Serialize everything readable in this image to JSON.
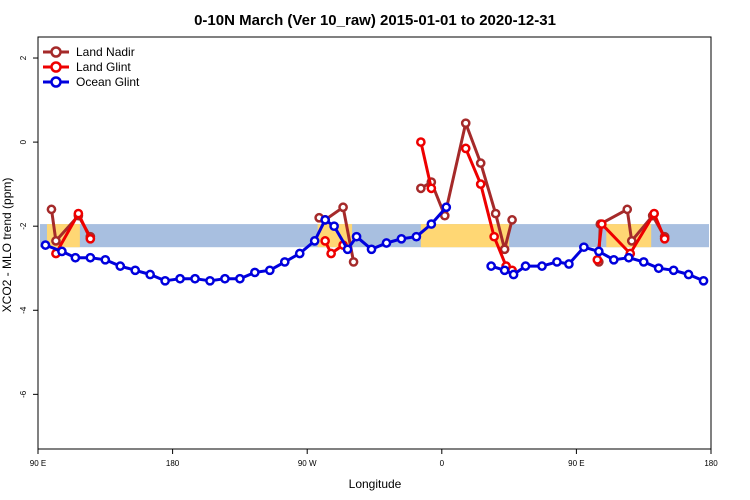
{
  "chart_data": {
    "type": "line",
    "title": "0-10N March (Ver 10_raw)   2015-01-01 to 2020-12-31",
    "xlabel": "Longitude",
    "ylabel": "XCO2 - MLO trend (ppm)",
    "xlim": [
      90,
      540
    ],
    "ylim": [
      -7.3,
      2.5
    ],
    "x_ticks": [
      {
        "value": 90,
        "label": "90 E"
      },
      {
        "value": 180,
        "label": "180"
      },
      {
        "value": 270,
        "label": "90 W"
      },
      {
        "value": 360,
        "label": "0"
      },
      {
        "value": 450,
        "label": "90 E"
      },
      {
        "value": 540,
        "label": "180"
      }
    ],
    "y_ticks": [
      {
        "value": 2,
        "label": "2"
      },
      {
        "value": 0,
        "label": "0"
      },
      {
        "value": -2,
        "label": "-2"
      },
      {
        "value": -4,
        "label": "-4"
      },
      {
        "value": -6,
        "label": "-6"
      }
    ],
    "band": {
      "y_min": -2.5,
      "y_max": -1.95,
      "color": "#a8bfe0"
    },
    "land_shading": {
      "color": "#ffd774",
      "regions": [
        {
          "x_from": 96,
          "x_to": 118
        },
        {
          "x_from": 277,
          "x_to": 300
        },
        {
          "x_from": 346,
          "x_to": 405
        },
        {
          "x_from": 470,
          "x_to": 500
        }
      ]
    },
    "series": [
      {
        "name": "Land Nadir",
        "color": "#a52a2a",
        "segments": [
          [
            [
              99,
              -1.6
            ],
            [
              102,
              -2.35
            ],
            [
              117,
              -1.75
            ],
            [
              125,
              -2.25
            ]
          ],
          [
            [
              278,
              -1.8
            ],
            [
              282,
              -1.85
            ],
            [
              294,
              -1.55
            ],
            [
              301,
              -2.85
            ]
          ],
          [
            [
              346,
              -1.1
            ],
            [
              353,
              -0.95
            ],
            [
              362,
              -1.75
            ],
            [
              376,
              0.45
            ],
            [
              386,
              -0.5
            ],
            [
              396,
              -1.7
            ],
            [
              402,
              -2.55
            ],
            [
              407,
              -1.85
            ]
          ],
          [
            [
              465,
              -2.85
            ],
            [
              466,
              -1.95
            ],
            [
              484,
              -1.6
            ],
            [
              487,
              -2.35
            ],
            [
              501,
              -1.75
            ],
            [
              509,
              -2.25
            ]
          ]
        ]
      },
      {
        "name": "Land Glint",
        "color": "#ee0000",
        "segments": [
          [
            [
              102,
              -2.65
            ],
            [
              117,
              -1.7
            ],
            [
              125,
              -2.3
            ]
          ],
          [
            [
              282,
              -2.35
            ],
            [
              286,
              -2.65
            ],
            [
              294,
              -2.45
            ]
          ],
          [
            [
              346,
              0.0
            ],
            [
              353,
              -1.1
            ]
          ],
          [
            [
              376,
              -0.15
            ],
            [
              386,
              -1.0
            ],
            [
              395,
              -2.25
            ],
            [
              403,
              -2.95
            ],
            [
              407,
              -3.05
            ]
          ],
          [
            [
              464,
              -2.8
            ],
            [
              467,
              -1.95
            ],
            [
              486,
              -2.65
            ],
            [
              502,
              -1.7
            ],
            [
              509,
              -2.3
            ]
          ]
        ]
      },
      {
        "name": "Ocean Glint",
        "color": "#0000dd",
        "segments": [
          [
            [
              95,
              -2.45
            ],
            [
              106,
              -2.6
            ],
            [
              115,
              -2.75
            ],
            [
              125,
              -2.75
            ],
            [
              135,
              -2.8
            ],
            [
              145,
              -2.95
            ],
            [
              155,
              -3.05
            ],
            [
              165,
              -3.15
            ],
            [
              175,
              -3.3
            ],
            [
              185,
              -3.25
            ],
            [
              195,
              -3.25
            ],
            [
              205,
              -3.3
            ],
            [
              215,
              -3.25
            ],
            [
              225,
              -3.25
            ],
            [
              235,
              -3.1
            ],
            [
              245,
              -3.05
            ],
            [
              255,
              -2.85
            ],
            [
              265,
              -2.65
            ],
            [
              275,
              -2.35
            ],
            [
              282,
              -1.85
            ],
            [
              288,
              -2.0
            ],
            [
              297,
              -2.55
            ],
            [
              303,
              -2.25
            ],
            [
              313,
              -2.55
            ],
            [
              323,
              -2.4
            ],
            [
              333,
              -2.3
            ],
            [
              343,
              -2.25
            ],
            [
              353,
              -1.95
            ],
            [
              363,
              -1.55
            ]
          ],
          [
            [
              393,
              -2.95
            ],
            [
              402,
              -3.05
            ],
            [
              408,
              -3.15
            ],
            [
              416,
              -2.95
            ],
            [
              427,
              -2.95
            ],
            [
              437,
              -2.85
            ],
            [
              445,
              -2.9
            ],
            [
              455,
              -2.5
            ],
            [
              465,
              -2.6
            ],
            [
              475,
              -2.8
            ],
            [
              485,
              -2.75
            ],
            [
              495,
              -2.85
            ],
            [
              505,
              -3.0
            ],
            [
              515,
              -3.05
            ],
            [
              525,
              -3.15
            ],
            [
              535,
              -3.3
            ]
          ]
        ]
      }
    ],
    "legend": {
      "position": "top-left",
      "entries": [
        "Land Nadir",
        "Land Glint",
        "Ocean Glint"
      ]
    }
  }
}
